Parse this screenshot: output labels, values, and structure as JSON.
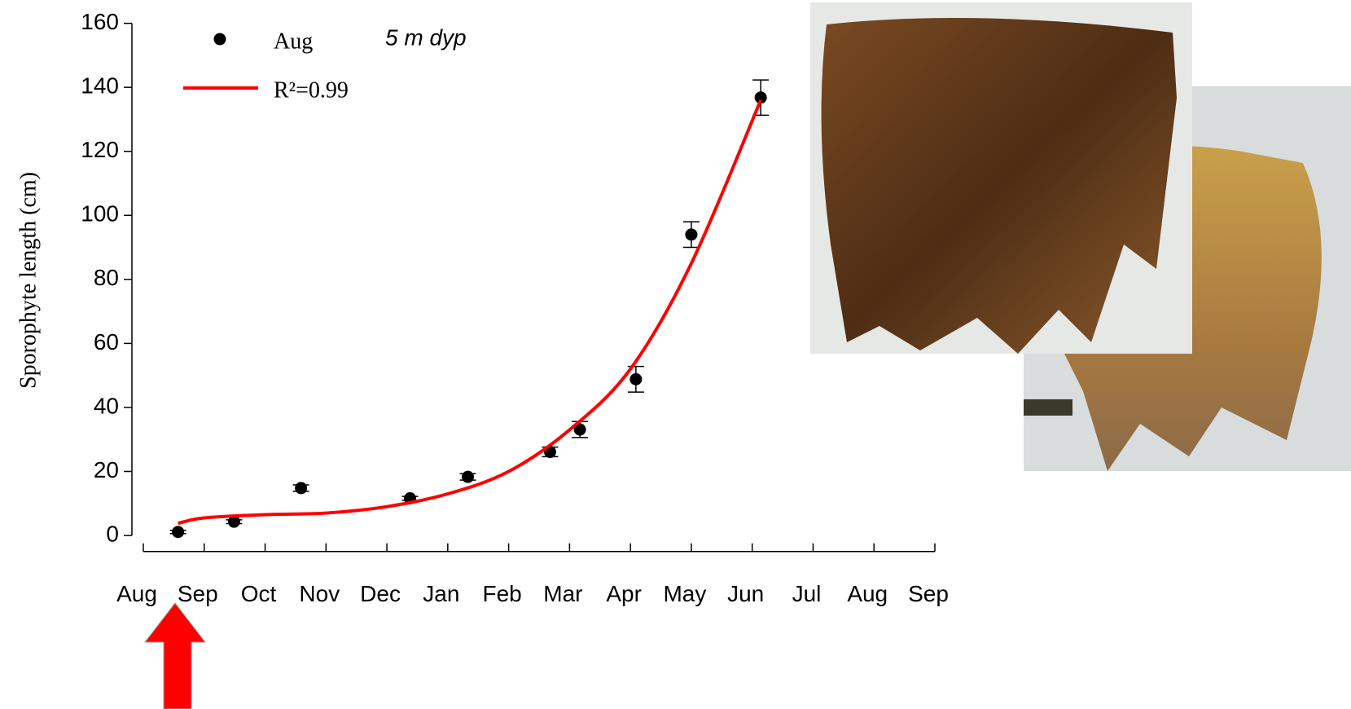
{
  "chart_data": {
    "type": "scatter",
    "ylabel": "Sporophyte length (cm)",
    "annotation": "5 m dyp",
    "xlim": [
      0,
      13
    ],
    "xticks": [
      {
        "value": 0,
        "label": "Aug"
      },
      {
        "value": 1,
        "label": "Sep"
      },
      {
        "value": 2,
        "label": "Oct"
      },
      {
        "value": 3,
        "label": "Nov"
      },
      {
        "value": 4,
        "label": "Dec"
      },
      {
        "value": 5,
        "label": "Jan"
      },
      {
        "value": 6,
        "label": "Feb"
      },
      {
        "value": 7,
        "label": "Mar"
      },
      {
        "value": 8,
        "label": "Apr"
      },
      {
        "value": 9,
        "label": "May"
      },
      {
        "value": 10,
        "label": "Jun"
      },
      {
        "value": 11,
        "label": "Jul"
      },
      {
        "value": 12,
        "label": "Aug"
      },
      {
        "value": 13,
        "label": "Sep"
      }
    ],
    "ylim": [
      -5,
      160
    ],
    "yticks": [
      0,
      20,
      40,
      60,
      80,
      100,
      120,
      140,
      160
    ],
    "series": [
      {
        "name": "Aug",
        "kind": "scatter",
        "color": "#000000",
        "x": [
          0.57,
          1.49,
          2.59,
          4.38,
          5.33,
          6.68,
          7.17,
          8.09,
          9.0,
          10.14
        ],
        "values": [
          1.1,
          4.3,
          14.8,
          11.6,
          18.3,
          26.1,
          33.1,
          48.8,
          94.0,
          136.8
        ],
        "errors": [
          0.5,
          0.6,
          1.0,
          0.6,
          1.0,
          1.5,
          2.5,
          4.0,
          4.0,
          5.5
        ]
      },
      {
        "name": "R²=0.99",
        "kind": "line",
        "color": "#ff0000",
        "x": [
          0.57,
          1,
          2,
          3,
          4,
          5,
          6,
          7,
          8,
          9,
          10.14
        ],
        "values": [
          3.8,
          5.5,
          6.5,
          7,
          9,
          13,
          20,
          33,
          52,
          85,
          136
        ]
      }
    ]
  }
}
